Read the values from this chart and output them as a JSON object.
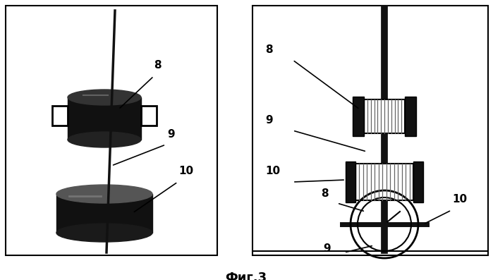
{
  "fig_label": "Фиг.3",
  "bg_color": "#f0f0f0",
  "border_color": "#000000",
  "line_color": "#000000",
  "dark_color": "#111111",
  "gray_color": "#888888"
}
